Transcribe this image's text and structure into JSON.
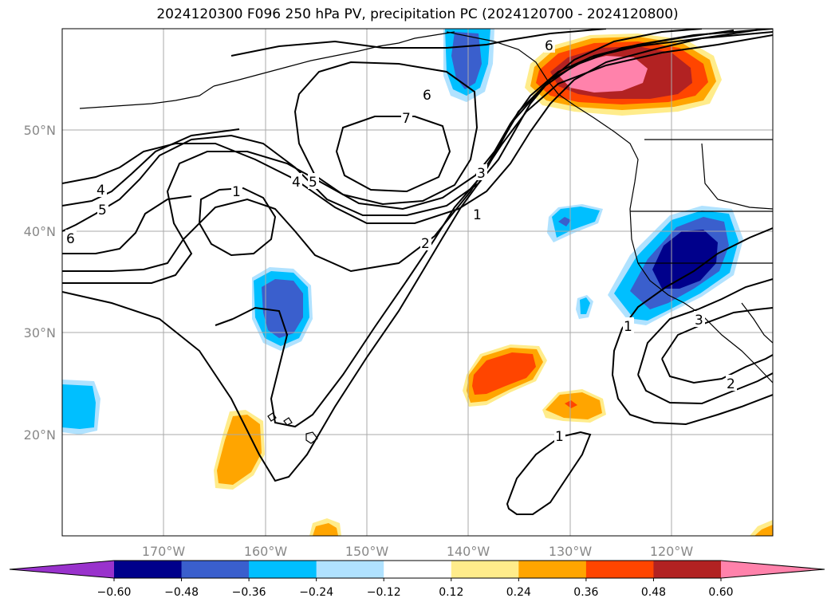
{
  "title": "2024120300 F096 250 hPa PV, precipitation PC (2024120700 - 2024120800)",
  "lat_labels": [
    "50°N",
    "40°N",
    "30°N",
    "20°N"
  ],
  "lon_labels": [
    "170°W",
    "160°W",
    "150°W",
    "140°W",
    "130°W",
    "120°W"
  ],
  "colorbar": {
    "ticks": [
      "−0.60",
      "−0.48",
      "−0.36",
      "−0.24",
      "−0.12",
      "0.12",
      "0.24",
      "0.36",
      "0.48",
      "0.60"
    ],
    "colors": [
      "#9932cc",
      "#00008b",
      "#3a5fcd",
      "#00bfff",
      "#b0e2ff",
      "#ffffff",
      "#ffec8b",
      "#ffa500",
      "#ff4500",
      "#b22222",
      "#ff82ab"
    ]
  },
  "contour_labels": [
    "6",
    "7",
    "6",
    "5",
    "4",
    "1",
    "3",
    "1",
    "2",
    "4",
    "5",
    "6",
    "1",
    "3",
    "2",
    "1"
  ],
  "colors": {
    "grid": "#aaaaaa",
    "contour": "#000000",
    "coast": "#000000"
  }
}
